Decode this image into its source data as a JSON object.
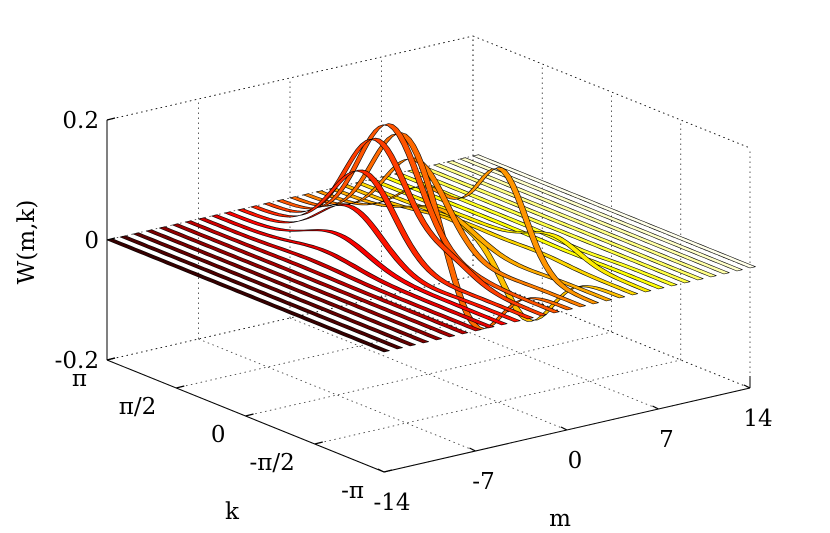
{
  "chart_data": {
    "type": "surface",
    "zlabel": "W(m,k)",
    "klabel": "k",
    "mlabel": "m",
    "z_ticks": [
      {
        "value": -0.2,
        "label": "-0.2"
      },
      {
        "value": 0,
        "label": "0"
      },
      {
        "value": 0.2,
        "label": "0.2"
      }
    ],
    "k_ticks": [
      {
        "value": 3.1416,
        "label": "π"
      },
      {
        "value": 1.5708,
        "label": "π/2"
      },
      {
        "value": 0,
        "label": "0"
      },
      {
        "value": -1.5708,
        "label": "-π/2"
      },
      {
        "value": -3.1416,
        "label": "-π"
      }
    ],
    "m_ticks": [
      {
        "value": -14,
        "label": "-14"
      },
      {
        "value": -7,
        "label": "-7"
      },
      {
        "value": 0,
        "label": "0"
      },
      {
        "value": 7,
        "label": "7"
      },
      {
        "value": 14,
        "label": "14"
      }
    ],
    "m_range": [
      -14,
      14
    ],
    "k_range": [
      -3.1416,
      3.1416
    ],
    "z_range": [
      -0.2,
      0.2
    ],
    "grid": true,
    "colormap": "hot",
    "surface": {
      "m_samples": 29,
      "k_samples": 61,
      "components": [
        {
          "center_m": -1,
          "center_k": 0.65,
          "width_m": 2.2,
          "width_k": 0.7,
          "amplitude": 0.2
        },
        {
          "center_m": 2,
          "center_k": -1.0,
          "width_m": 2.2,
          "width_k": 0.55,
          "amplitude": 0.155,
          "oscillation_m": 1.6
        }
      ]
    }
  }
}
